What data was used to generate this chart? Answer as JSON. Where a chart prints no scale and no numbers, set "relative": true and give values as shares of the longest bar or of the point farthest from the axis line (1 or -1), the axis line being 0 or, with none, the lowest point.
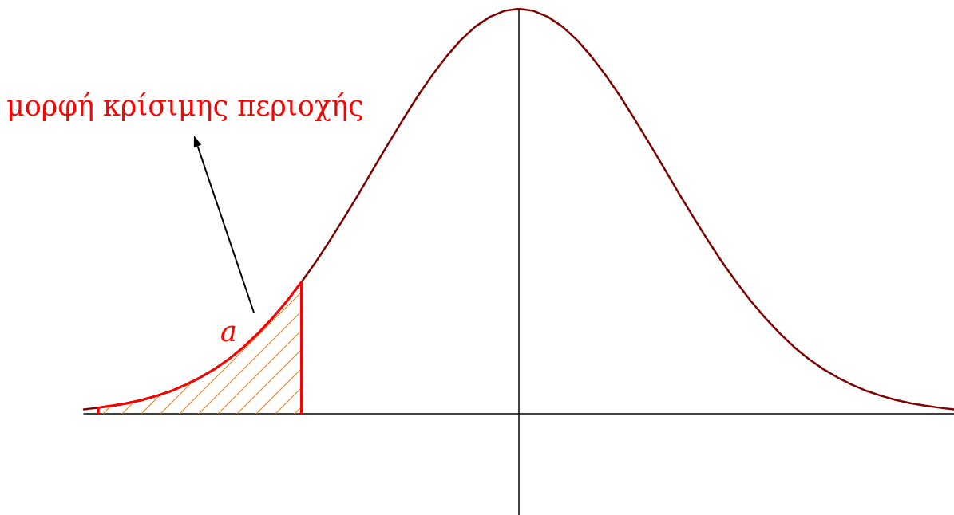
{
  "chart_data": {
    "type": "line",
    "relative": true,
    "grid": false,
    "marker": "none",
    "annotations": [
      "μορφή κρίσιμης περιοχής",
      "a"
    ],
    "categories": [
      null,
      null,
      null,
      null,
      null,
      null,
      null,
      null,
      null,
      null,
      null,
      null,
      null,
      null,
      null,
      null,
      null,
      null,
      null,
      null,
      null,
      null,
      null,
      null,
      null,
      null,
      null,
      null,
      null,
      null,
      null,
      null,
      null,
      null,
      null,
      null,
      null,
      null,
      null,
      null,
      null,
      null,
      null,
      null,
      null,
      null,
      null,
      null,
      null,
      null,
      null,
      null,
      null,
      null,
      null,
      null,
      null,
      null,
      null,
      null,
      null
    ],
    "series": [
      {
        "color": "#800000",
        "values": [
          0.011,
          0.015,
          0.02,
          0.026,
          0.034,
          0.044,
          0.056,
          0.071,
          0.089,
          0.11,
          0.135,
          0.164,
          0.198,
          0.236,
          0.278,
          0.325,
          0.375,
          0.43,
          0.487,
          0.546,
          0.607,
          0.667,
          0.726,
          0.783,
          0.835,
          0.882,
          0.923,
          0.956,
          0.98,
          0.995,
          1,
          0.995,
          0.98,
          0.956,
          0.923,
          0.882,
          0.835,
          0.783,
          0.726,
          0.667,
          0.607,
          0.546,
          0.487,
          0.43,
          0.375,
          0.325,
          0.278,
          0.236,
          0.198,
          0.164,
          0.135,
          0.11,
          0.089,
          0.071,
          0.056,
          0.044,
          0.034,
          0.026,
          0.02,
          0.015,
          0.011
        ]
      },
      {
        "type": "area",
        "color": "#ff0000",
        "values": [
          null,
          0.015,
          0.02,
          0.026,
          0.034,
          0.044,
          0.056,
          0.071,
          0.089,
          0.11,
          0.135,
          0.164,
          0.198,
          0.236,
          0.278,
          0.325,
          null,
          null,
          null,
          null,
          null,
          null,
          null,
          null,
          null,
          null,
          null,
          null,
          null,
          null,
          null,
          null,
          null,
          null,
          null,
          null,
          null,
          null,
          null,
          null,
          null,
          null,
          null,
          null,
          null,
          null,
          null,
          null,
          null,
          null,
          null,
          null,
          null,
          null,
          null,
          null,
          null,
          null,
          null,
          null,
          null
        ]
      }
    ]
  }
}
